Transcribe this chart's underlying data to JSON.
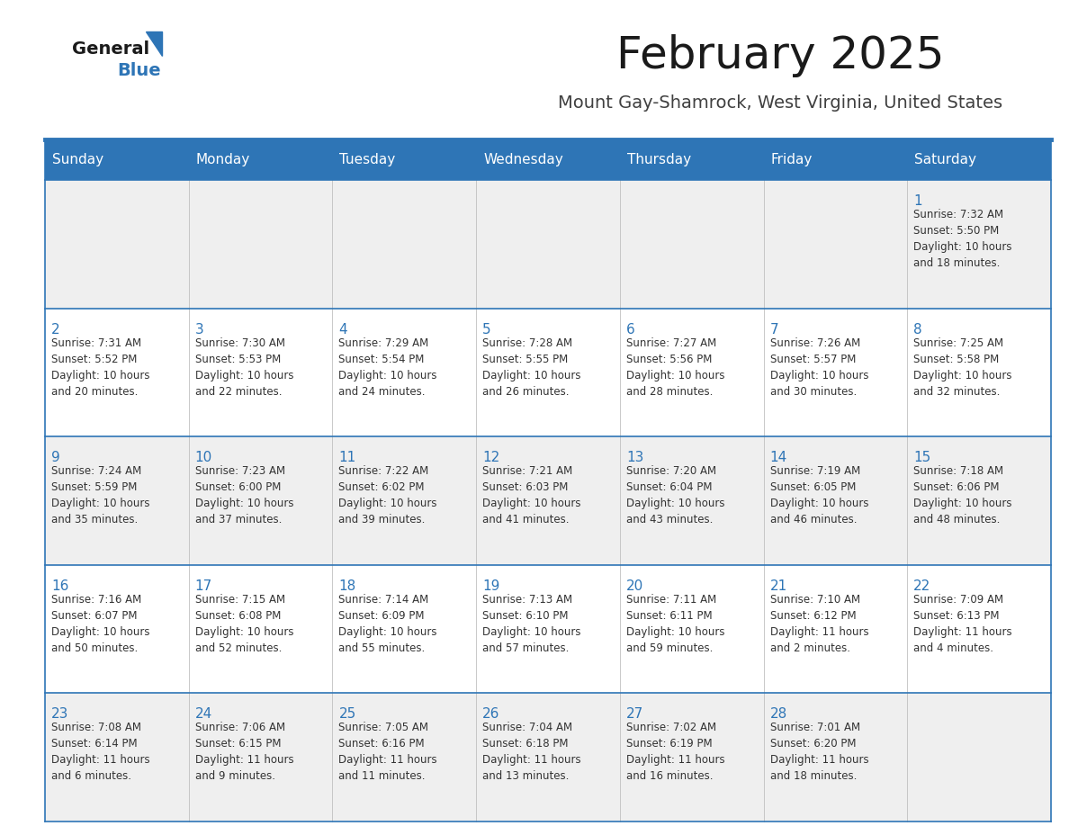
{
  "title": "February 2025",
  "subtitle": "Mount Gay-Shamrock, West Virginia, United States",
  "header_bg": "#2E75B6",
  "header_text": "#FFFFFF",
  "cell_bg_light": "#EFEFEF",
  "cell_bg_white": "#FFFFFF",
  "border_color": "#2E75B6",
  "day_headers": [
    "Sunday",
    "Monday",
    "Tuesday",
    "Wednesday",
    "Thursday",
    "Friday",
    "Saturday"
  ],
  "title_color": "#1a1a1a",
  "subtitle_color": "#404040",
  "day_num_color": "#2E75B6",
  "cell_text_color": "#333333",
  "logo_general_color": "#1a1a1a",
  "logo_blue_color": "#2E75B6",
  "weeks": [
    [
      {
        "day": "",
        "info": ""
      },
      {
        "day": "",
        "info": ""
      },
      {
        "day": "",
        "info": ""
      },
      {
        "day": "",
        "info": ""
      },
      {
        "day": "",
        "info": ""
      },
      {
        "day": "",
        "info": ""
      },
      {
        "day": "1",
        "info": "Sunrise: 7:32 AM\nSunset: 5:50 PM\nDaylight: 10 hours\nand 18 minutes."
      }
    ],
    [
      {
        "day": "2",
        "info": "Sunrise: 7:31 AM\nSunset: 5:52 PM\nDaylight: 10 hours\nand 20 minutes."
      },
      {
        "day": "3",
        "info": "Sunrise: 7:30 AM\nSunset: 5:53 PM\nDaylight: 10 hours\nand 22 minutes."
      },
      {
        "day": "4",
        "info": "Sunrise: 7:29 AM\nSunset: 5:54 PM\nDaylight: 10 hours\nand 24 minutes."
      },
      {
        "day": "5",
        "info": "Sunrise: 7:28 AM\nSunset: 5:55 PM\nDaylight: 10 hours\nand 26 minutes."
      },
      {
        "day": "6",
        "info": "Sunrise: 7:27 AM\nSunset: 5:56 PM\nDaylight: 10 hours\nand 28 minutes."
      },
      {
        "day": "7",
        "info": "Sunrise: 7:26 AM\nSunset: 5:57 PM\nDaylight: 10 hours\nand 30 minutes."
      },
      {
        "day": "8",
        "info": "Sunrise: 7:25 AM\nSunset: 5:58 PM\nDaylight: 10 hours\nand 32 minutes."
      }
    ],
    [
      {
        "day": "9",
        "info": "Sunrise: 7:24 AM\nSunset: 5:59 PM\nDaylight: 10 hours\nand 35 minutes."
      },
      {
        "day": "10",
        "info": "Sunrise: 7:23 AM\nSunset: 6:00 PM\nDaylight: 10 hours\nand 37 minutes."
      },
      {
        "day": "11",
        "info": "Sunrise: 7:22 AM\nSunset: 6:02 PM\nDaylight: 10 hours\nand 39 minutes."
      },
      {
        "day": "12",
        "info": "Sunrise: 7:21 AM\nSunset: 6:03 PM\nDaylight: 10 hours\nand 41 minutes."
      },
      {
        "day": "13",
        "info": "Sunrise: 7:20 AM\nSunset: 6:04 PM\nDaylight: 10 hours\nand 43 minutes."
      },
      {
        "day": "14",
        "info": "Sunrise: 7:19 AM\nSunset: 6:05 PM\nDaylight: 10 hours\nand 46 minutes."
      },
      {
        "day": "15",
        "info": "Sunrise: 7:18 AM\nSunset: 6:06 PM\nDaylight: 10 hours\nand 48 minutes."
      }
    ],
    [
      {
        "day": "16",
        "info": "Sunrise: 7:16 AM\nSunset: 6:07 PM\nDaylight: 10 hours\nand 50 minutes."
      },
      {
        "day": "17",
        "info": "Sunrise: 7:15 AM\nSunset: 6:08 PM\nDaylight: 10 hours\nand 52 minutes."
      },
      {
        "day": "18",
        "info": "Sunrise: 7:14 AM\nSunset: 6:09 PM\nDaylight: 10 hours\nand 55 minutes."
      },
      {
        "day": "19",
        "info": "Sunrise: 7:13 AM\nSunset: 6:10 PM\nDaylight: 10 hours\nand 57 minutes."
      },
      {
        "day": "20",
        "info": "Sunrise: 7:11 AM\nSunset: 6:11 PM\nDaylight: 10 hours\nand 59 minutes."
      },
      {
        "day": "21",
        "info": "Sunrise: 7:10 AM\nSunset: 6:12 PM\nDaylight: 11 hours\nand 2 minutes."
      },
      {
        "day": "22",
        "info": "Sunrise: 7:09 AM\nSunset: 6:13 PM\nDaylight: 11 hours\nand 4 minutes."
      }
    ],
    [
      {
        "day": "23",
        "info": "Sunrise: 7:08 AM\nSunset: 6:14 PM\nDaylight: 11 hours\nand 6 minutes."
      },
      {
        "day": "24",
        "info": "Sunrise: 7:06 AM\nSunset: 6:15 PM\nDaylight: 11 hours\nand 9 minutes."
      },
      {
        "day": "25",
        "info": "Sunrise: 7:05 AM\nSunset: 6:16 PM\nDaylight: 11 hours\nand 11 minutes."
      },
      {
        "day": "26",
        "info": "Sunrise: 7:04 AM\nSunset: 6:18 PM\nDaylight: 11 hours\nand 13 minutes."
      },
      {
        "day": "27",
        "info": "Sunrise: 7:02 AM\nSunset: 6:19 PM\nDaylight: 11 hours\nand 16 minutes."
      },
      {
        "day": "28",
        "info": "Sunrise: 7:01 AM\nSunset: 6:20 PM\nDaylight: 11 hours\nand 18 minutes."
      },
      {
        "day": "",
        "info": ""
      }
    ]
  ],
  "figsize": [
    11.88,
    9.18
  ],
  "dpi": 100
}
